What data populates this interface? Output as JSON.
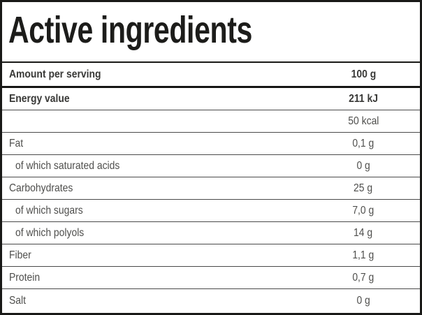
{
  "title": "Active ingredients",
  "table": {
    "header": {
      "label": "Amount per serving",
      "value": "100 g"
    },
    "rows": [
      {
        "label": "Energy value",
        "value": "211 kJ"
      },
      {
        "label": "",
        "value": "50 kcal"
      },
      {
        "label": "Fat",
        "value": "0,1 g"
      },
      {
        "label": "of which saturated acids",
        "value": "0 g"
      },
      {
        "label": "Carbohydrates",
        "value": "25 g"
      },
      {
        "label": "of which sugars",
        "value": "7,0 g"
      },
      {
        "label": "of which polyols",
        "value": "14 g"
      },
      {
        "label": "Fiber",
        "value": "1,1 g"
      },
      {
        "label": "Protein",
        "value": "0,7 g"
      },
      {
        "label": "Salt",
        "value": "0 g"
      }
    ]
  },
  "colors": {
    "border": "#191917",
    "title_text": "#1c1c1a",
    "bold_text": "#393937",
    "regular_text": "#4e4e4c",
    "separator": "#4a4a4a",
    "background": "#ffffff"
  }
}
